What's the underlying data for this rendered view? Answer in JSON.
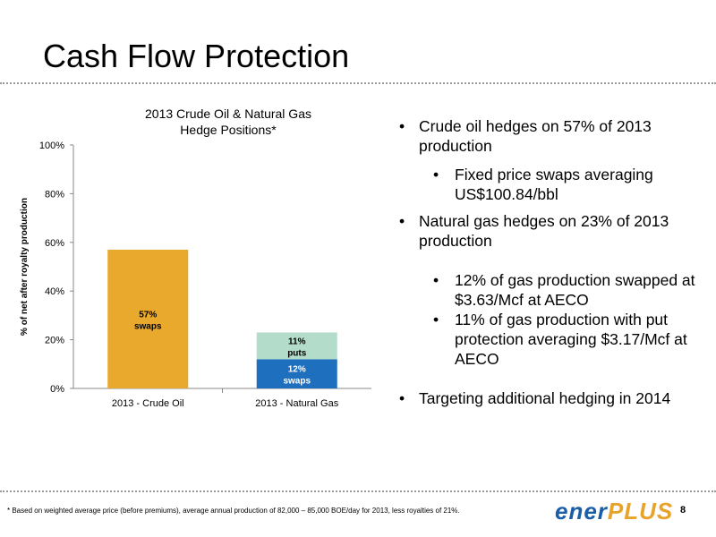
{
  "slide": {
    "title": "Cash Flow Protection",
    "page_number": "8",
    "footnote": "* Based on weighted average price (before premiums), average annual production of 82,000 – 85,000 BOE/day for 2013, less royalties of 21%.",
    "logo": {
      "part1": "ener",
      "part2": "PLUS"
    }
  },
  "bullets": [
    {
      "level": 1,
      "text": "Crude oil hedges on 57% of 2013 production"
    },
    {
      "level": 2,
      "text": "Fixed price swaps averaging US$100.84/bbl"
    },
    {
      "level": 1,
      "text": "Natural gas hedges on 23% of 2013 production"
    },
    {
      "level": 2,
      "text": "12% of gas production swapped at $3.63/Mcf at AECO"
    },
    {
      "level": 2,
      "text": "11% of gas production with put protection averaging $3.17/Mcf at AECO"
    },
    {
      "level": 1,
      "text": "Targeting additional hedging in 2014"
    }
  ],
  "chart_data": {
    "type": "bar",
    "stacked": true,
    "title_line1": "2013 Crude Oil & Natural Gas",
    "title_line2": "Hedge Positions*",
    "ylabel": "% of net after royalty production",
    "ylim": [
      0,
      100
    ],
    "yticks": [
      "0%",
      "20%",
      "40%",
      "60%",
      "80%",
      "100%"
    ],
    "grid": false,
    "categories": [
      "2013  - Crude Oil",
      "2013 - Natural Gas"
    ],
    "series": [
      {
        "label_line1": "57%",
        "label_line2": "swaps",
        "values": [
          57,
          null
        ],
        "color": "#e8a92c",
        "label_color": "#000000"
      },
      {
        "label_line1": "12%",
        "label_line2": "swaps",
        "values": [
          null,
          12
        ],
        "color": "#1f6fbf",
        "label_color": "#ffffff"
      },
      {
        "label_line1": "11%",
        "label_line2": "puts",
        "values": [
          null,
          11
        ],
        "color": "#b3dccb",
        "label_color": "#000000"
      }
    ]
  }
}
